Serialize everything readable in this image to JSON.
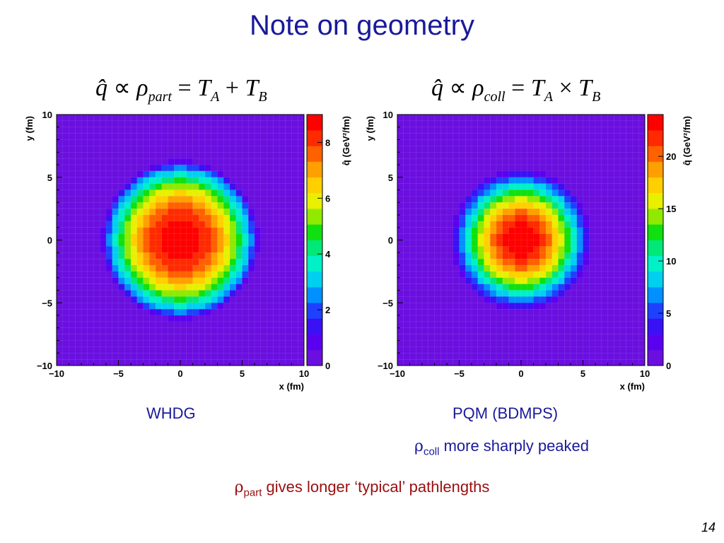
{
  "slide": {
    "title": "Note on geometry",
    "page_number": "14",
    "left_caption": "WHDG",
    "right_caption": "PQM (BDMPS)",
    "right_note": {
      "symbol": "ρ",
      "sub": "coll",
      "text": " more sharply peaked"
    },
    "bottom_note": {
      "symbol": "ρ",
      "sub": "part",
      "text": " gives longer ‘typical’ pathlengths"
    },
    "formula_left": {
      "q": "q̂",
      "prop": "∝",
      "rho": "ρ",
      "sub": "part",
      "eq": "=",
      "t1": "T",
      "t1sub": "A",
      "op": "+",
      "t2": "T",
      "t2sub": "B"
    },
    "formula_right": {
      "q": "q̂",
      "prop": "∝",
      "rho": "ρ",
      "sub": "coll",
      "eq": "=",
      "t1": "T",
      "t1sub": "A",
      "op": "×",
      "t2": "T",
      "t2sub": "B"
    }
  },
  "chart_data": [
    {
      "type": "heatmap",
      "xlabel": "x (fm)",
      "ylabel": "y (fm)",
      "xlim": [
        -10,
        10
      ],
      "ylim": [
        -10,
        10
      ],
      "xticks": [
        "−10",
        "−5",
        "0",
        "5",
        "10"
      ],
      "yticks": [
        "−10",
        "−5",
        "0",
        "5",
        "10"
      ],
      "colorbar_label": "q̂ (GeV²/fm)",
      "colorbar_range": [
        0,
        9
      ],
      "colorbar_ticks": [
        "0",
        "2",
        "4",
        "6",
        "8"
      ],
      "colorbar_tick_values": [
        0,
        2,
        4,
        6,
        8
      ],
      "profile": {
        "peak": 9,
        "radius": 6.5,
        "shape": "participant"
      },
      "grid": true
    },
    {
      "type": "heatmap",
      "xlabel": "x (fm)",
      "ylabel": "y (fm)",
      "xlim": [
        -10,
        10
      ],
      "ylim": [
        -10,
        10
      ],
      "xticks": [
        "−10",
        "−5",
        "0",
        "5",
        "10"
      ],
      "yticks": [
        "−10",
        "−5",
        "0",
        "5",
        "10"
      ],
      "colorbar_label": "q̂ (GeV²/fm)",
      "colorbar_range": [
        0,
        24
      ],
      "colorbar_ticks": [
        "0",
        "5",
        "10",
        "15",
        "20"
      ],
      "colorbar_tick_values": [
        0,
        5,
        10,
        15,
        20
      ],
      "profile": {
        "peak": 24,
        "radius": 6.0,
        "shape": "collision"
      },
      "grid": true
    }
  ],
  "palette": [
    "#6a0fe0",
    "#5a00f0",
    "#3a10f5",
    "#1e40ff",
    "#0090ff",
    "#00d0f0",
    "#00f0c8",
    "#00e878",
    "#10e010",
    "#90ea00",
    "#e8f000",
    "#ffd000",
    "#ffa000",
    "#ff6000",
    "#ff2a00",
    "#ff0000"
  ]
}
